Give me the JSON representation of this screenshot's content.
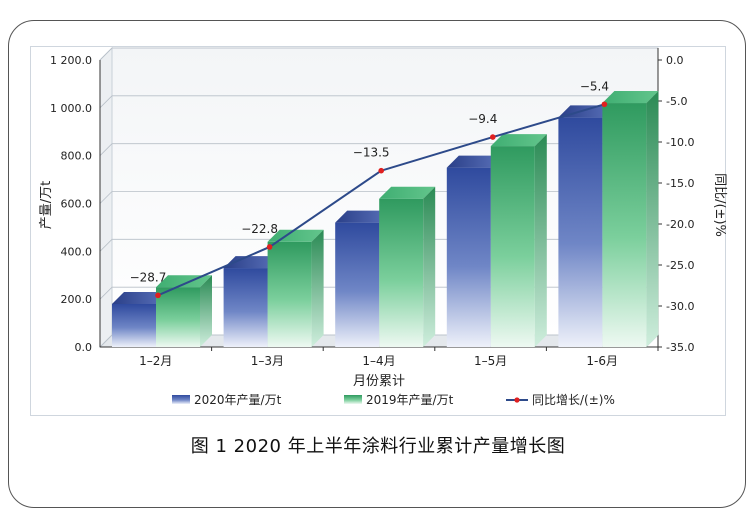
{
  "figure": {
    "caption": "图 1  2020 年上半年涂料行业累计产量增长图"
  },
  "chart_data": {
    "type": "bar",
    "categories": [
      "1–2月",
      "1–3月",
      "1–4月",
      "1–5月",
      "1-6月"
    ],
    "xlabel": "月份累计",
    "ylabel": "产量/万t",
    "y2label": "同比/(±)%",
    "ylim": [
      0,
      1200
    ],
    "y2lim": [
      -35,
      0
    ],
    "yticks": [
      "0.0",
      "200.0",
      "400.0",
      "600.0",
      "800.0",
      "1 000.0",
      "1 200.0"
    ],
    "y2ticks": [
      "-35.0",
      "-30.0",
      "-25.0",
      "-20.0",
      "-15.0",
      "-10.0",
      "-5.0",
      "0.0"
    ],
    "series": [
      {
        "name": "2020年产量/万t",
        "type": "bar",
        "values": [
          180,
          330,
          520,
          750,
          960
        ],
        "color": "#3b56a8"
      },
      {
        "name": "2019年产量/万t",
        "type": "bar",
        "values": [
          250,
          440,
          620,
          840,
          1020
        ],
        "color": "#3fae72"
      },
      {
        "name": "同比增长/(±)%",
        "type": "line",
        "axis": "y2",
        "values": [
          -28.7,
          -22.8,
          -13.5,
          -9.4,
          -5.4
        ],
        "labels": [
          "−28.7",
          "−22.8",
          "−13.5",
          "−9.4",
          "−5.4"
        ],
        "color": "#2d4a8a",
        "marker_color": "#e02020"
      }
    ],
    "grid": true,
    "legend": "bottom"
  }
}
